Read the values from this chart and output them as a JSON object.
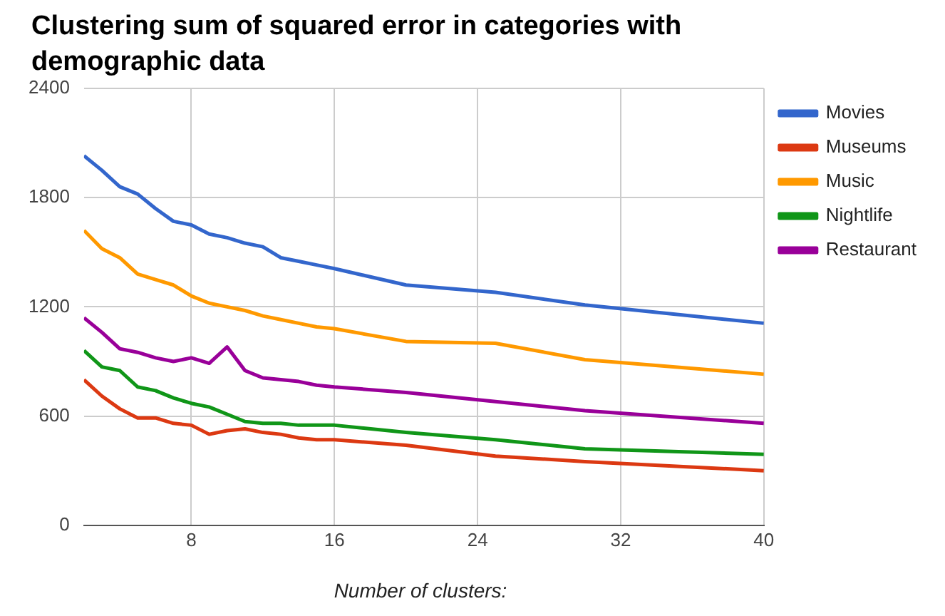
{
  "chart_data": {
    "type": "line",
    "title": "Clustering sum of squared error in categories with demographic data",
    "xlabel": "Number of clusters:",
    "x": [
      2,
      3,
      4,
      5,
      6,
      7,
      8,
      9,
      10,
      11,
      12,
      13,
      14,
      15,
      16,
      20,
      25,
      30,
      40
    ],
    "series": [
      {
        "name": "Movies",
        "color": "#3366cc",
        "values": [
          2030,
          1950,
          1860,
          1820,
          1740,
          1670,
          1650,
          1600,
          1580,
          1550,
          1530,
          1470,
          1450,
          1430,
          1410,
          1320,
          1280,
          1210,
          1110
        ]
      },
      {
        "name": "Museums",
        "color": "#dc3912",
        "values": [
          800,
          710,
          640,
          590,
          590,
          560,
          550,
          500,
          520,
          530,
          510,
          500,
          480,
          470,
          470,
          440,
          380,
          350,
          300
        ]
      },
      {
        "name": "Music",
        "color": "#ff9900",
        "values": [
          1620,
          1520,
          1470,
          1380,
          1350,
          1320,
          1260,
          1220,
          1200,
          1180,
          1150,
          1130,
          1110,
          1090,
          1080,
          1010,
          1000,
          910,
          830
        ]
      },
      {
        "name": "Nightlife",
        "color": "#109618",
        "values": [
          960,
          870,
          850,
          760,
          740,
          700,
          670,
          650,
          610,
          570,
          560,
          560,
          550,
          550,
          550,
          510,
          470,
          420,
          390
        ]
      },
      {
        "name": "Restaurant",
        "color": "#990099",
        "values": [
          1140,
          1060,
          970,
          950,
          920,
          900,
          920,
          890,
          980,
          850,
          810,
          800,
          790,
          770,
          760,
          730,
          680,
          630,
          560
        ]
      }
    ],
    "xlim": [
      2,
      40
    ],
    "xticks": [
      8,
      16,
      24,
      32,
      40
    ],
    "ylim": [
      0,
      2400
    ],
    "yticks": [
      0,
      600,
      1200,
      1800,
      2400
    ],
    "grid": true,
    "legend": "right",
    "marker": "none",
    "line_style": "solid"
  }
}
